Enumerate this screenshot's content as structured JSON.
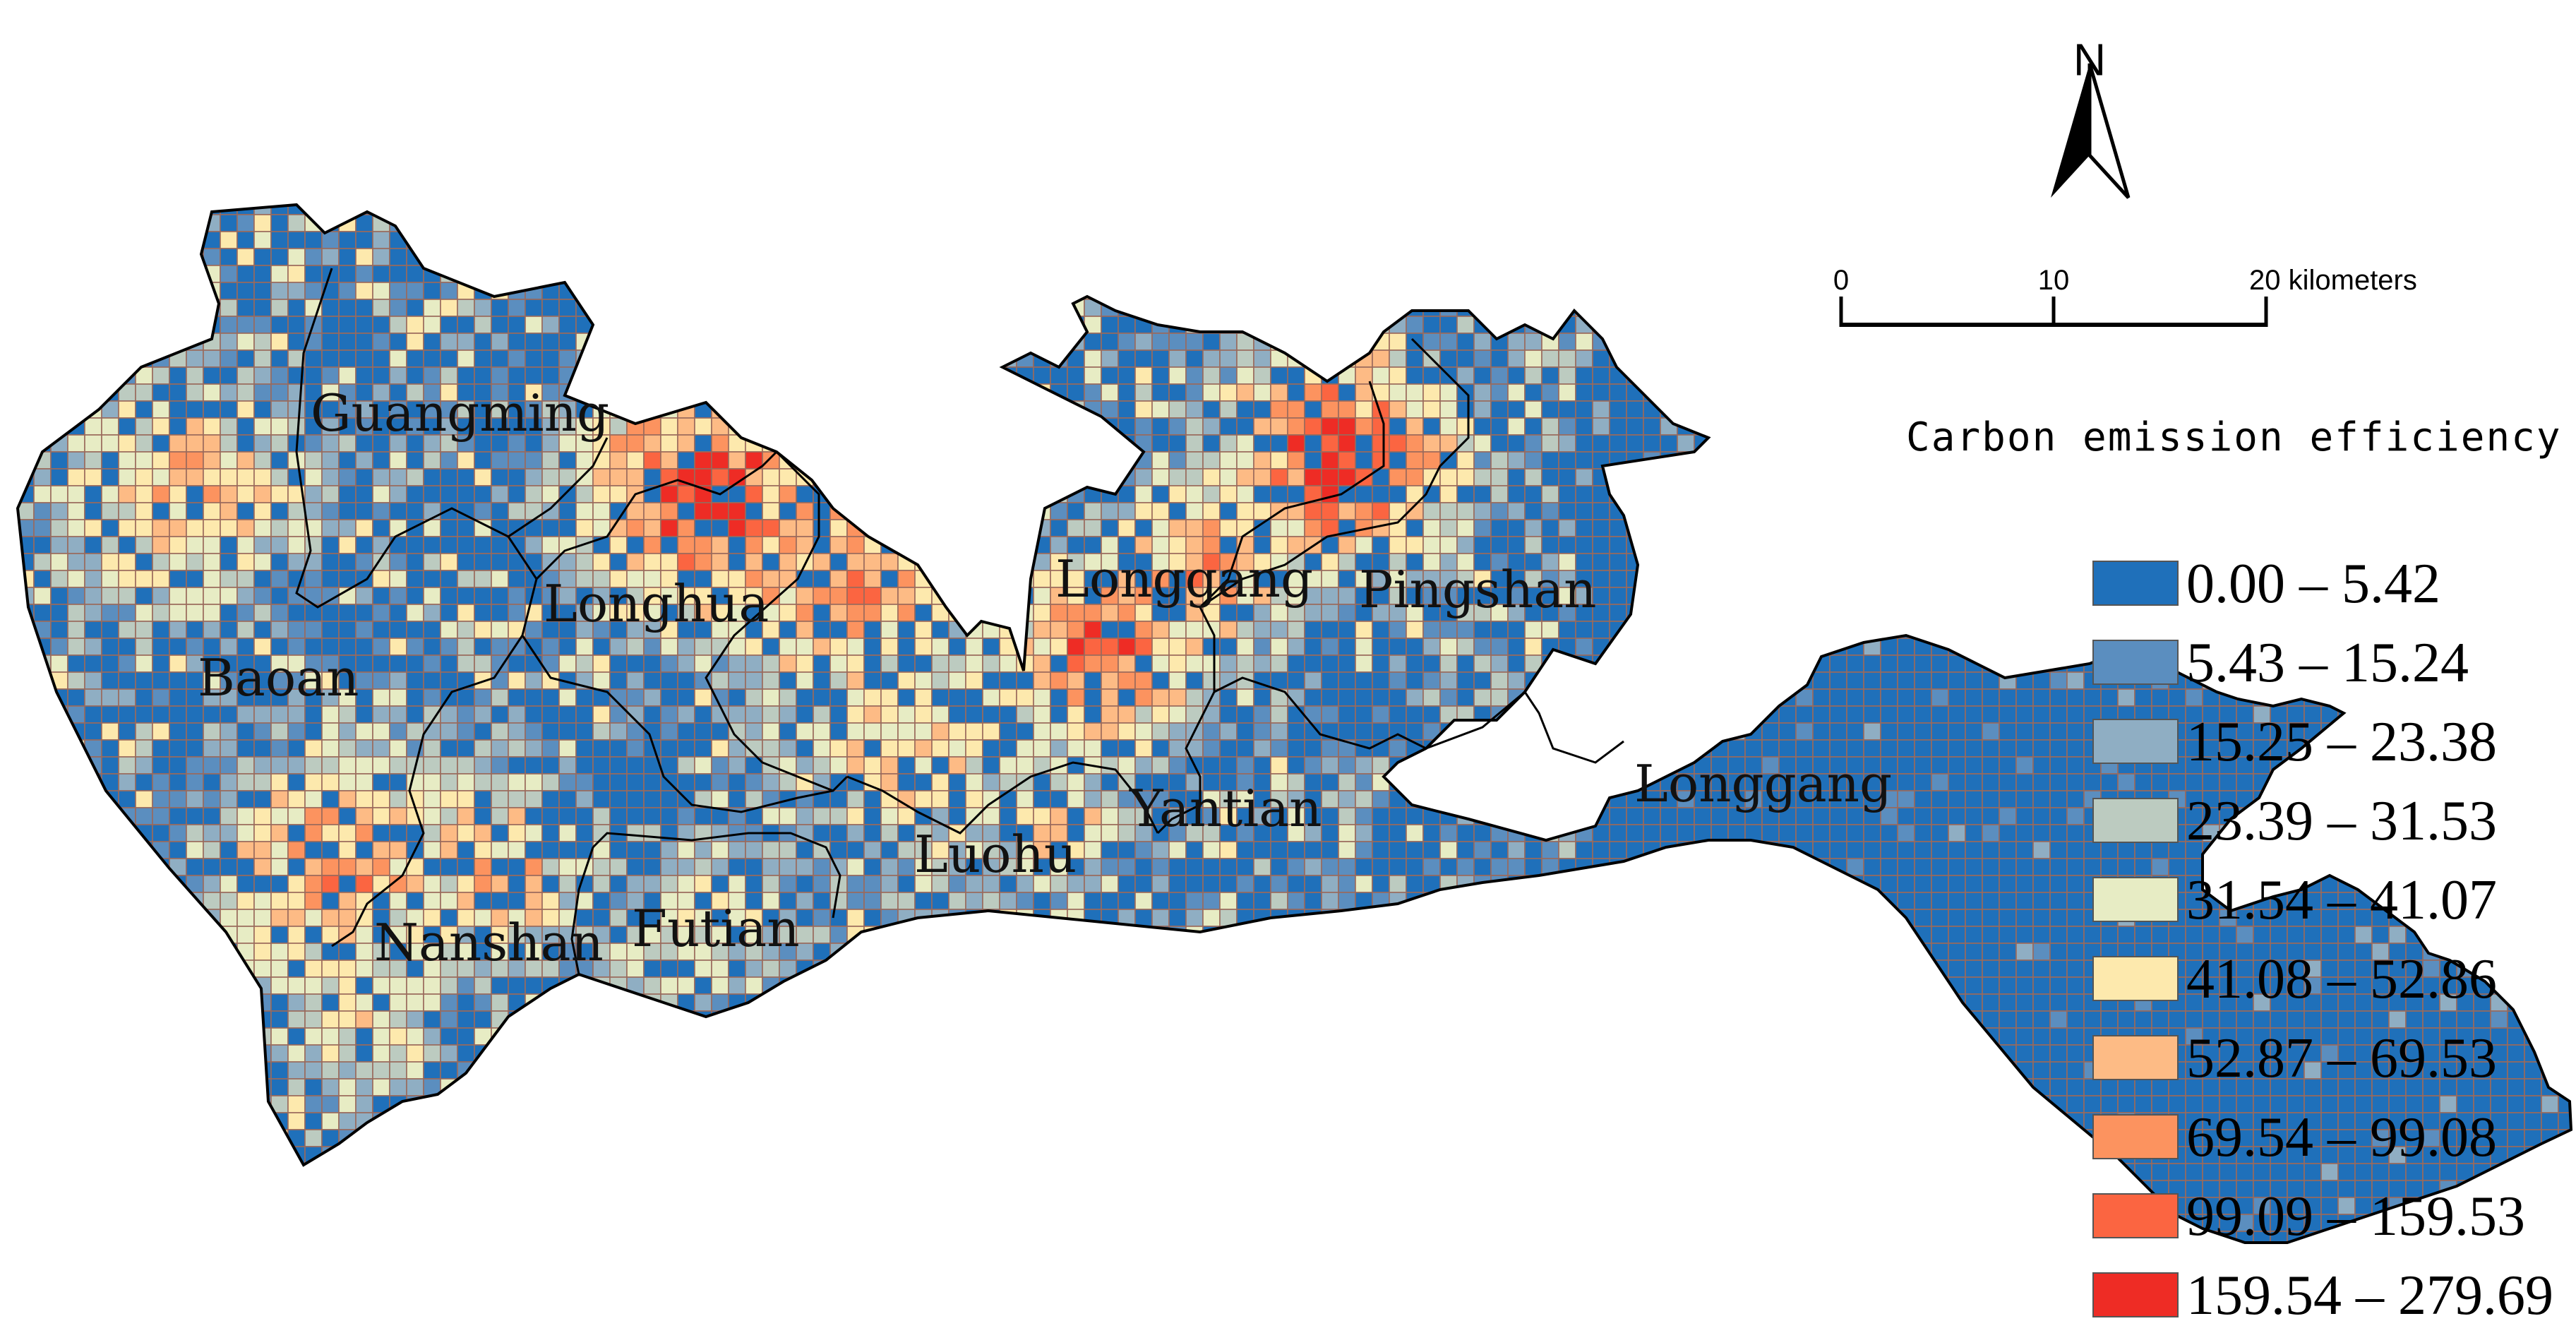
{
  "map": {
    "north_label": "N",
    "scale_bar": {
      "ticks": [
        "0",
        "10",
        "20 kilometers"
      ]
    },
    "legend": {
      "title": "Carbon emission efficiency",
      "classes": [
        {
          "label": "0.00 – 5.42",
          "color": "#1f70ba"
        },
        {
          "label": "5.43 – 15.24",
          "color": "#5b8ebf"
        },
        {
          "label": "15.25 – 23.38",
          "color": "#8faec3"
        },
        {
          "label": "23.39 – 31.53",
          "color": "#bccbc0"
        },
        {
          "label": "31.54 – 41.07",
          "color": "#e7ecc4"
        },
        {
          "label": "41.08 – 52.86",
          "color": "#fde9ad"
        },
        {
          "label": "52.87 – 69.53",
          "color": "#fdbb85"
        },
        {
          "label": "69.54 – 99.08",
          "color": "#fc935f"
        },
        {
          "label": "99.09 – 159.53",
          "color": "#fb6541"
        },
        {
          "label": "159.54 – 279.69",
          "color": "#ee2c25"
        }
      ]
    },
    "districts": [
      {
        "id": "guangming",
        "name": "Guangming"
      },
      {
        "id": "longhua",
        "name": "Longhua"
      },
      {
        "id": "baoan",
        "name": "Baoan"
      },
      {
        "id": "longgang-west",
        "name": "Longgang"
      },
      {
        "id": "pingshan",
        "name": "Pingshan"
      },
      {
        "id": "yantian",
        "name": "Yantian"
      },
      {
        "id": "luohu",
        "name": "Luohu"
      },
      {
        "id": "futian",
        "name": "Futian"
      },
      {
        "id": "nanshan",
        "name": "Nanshan"
      },
      {
        "id": "longgang-east",
        "name": "Longgang"
      }
    ],
    "grid_line_color": "#9a6a5c",
    "boundary_color": "#000000"
  }
}
